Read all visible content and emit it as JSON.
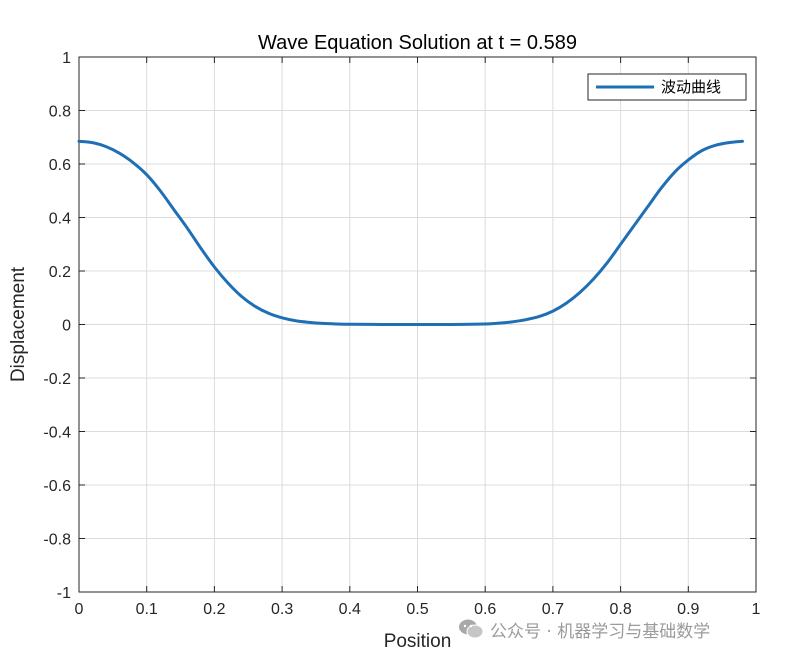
{
  "chart_data": {
    "type": "line",
    "title": "Wave Equation Solution at t = 0.589",
    "xlabel": "Position",
    "ylabel": "Displacement",
    "xlim": [
      0,
      1
    ],
    "ylim": [
      -1,
      1
    ],
    "xticks": [
      0,
      0.1,
      0.2,
      0.3,
      0.4,
      0.5,
      0.6,
      0.7,
      0.8,
      0.9,
      1
    ],
    "xtick_labels": [
      "0",
      "0.1",
      "0.2",
      "0.3",
      "0.4",
      "0.5",
      "0.6",
      "0.7",
      "0.8",
      "0.9",
      "1"
    ],
    "yticks": [
      -1,
      -0.8,
      -0.6,
      -0.4,
      -0.2,
      0,
      0.2,
      0.4,
      0.6,
      0.8,
      1
    ],
    "ytick_labels": [
      "-1",
      "-0.8",
      "-0.6",
      "-0.4",
      "-0.2",
      "0",
      "0.2",
      "0.4",
      "0.6",
      "0.8",
      "1"
    ],
    "grid": true,
    "legend_position": "top-right",
    "series": [
      {
        "name": "波动曲线",
        "color": "#1f6fb5",
        "x": [
          0,
          0.02,
          0.04,
          0.06,
          0.08,
          0.1,
          0.12,
          0.14,
          0.16,
          0.18,
          0.2,
          0.22,
          0.24,
          0.26,
          0.28,
          0.3,
          0.32,
          0.34,
          0.36,
          0.38,
          0.4,
          0.45,
          0.5,
          0.55,
          0.6,
          0.62,
          0.64,
          0.66,
          0.68,
          0.7,
          0.72,
          0.74,
          0.76,
          0.78,
          0.8,
          0.82,
          0.84,
          0.86,
          0.88,
          0.9,
          0.92,
          0.94,
          0.96,
          0.98
        ],
        "y": [
          0.685,
          0.68,
          0.665,
          0.64,
          0.605,
          0.56,
          0.5,
          0.43,
          0.36,
          0.285,
          0.215,
          0.155,
          0.105,
          0.068,
          0.042,
          0.025,
          0.014,
          0.008,
          0.004,
          0.002,
          0.001,
          0.0,
          0.0,
          0.0,
          0.002,
          0.005,
          0.01,
          0.018,
          0.03,
          0.05,
          0.08,
          0.12,
          0.17,
          0.23,
          0.3,
          0.37,
          0.44,
          0.51,
          0.57,
          0.615,
          0.65,
          0.67,
          0.68,
          0.685
        ]
      }
    ]
  },
  "watermark": {
    "icon": "wechat-icon",
    "text": "公众号 · 机器学习与基础数学"
  }
}
